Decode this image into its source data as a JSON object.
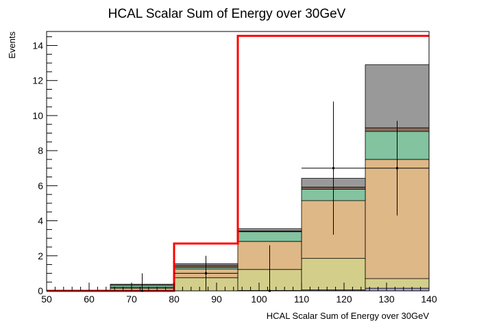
{
  "chart_data": {
    "type": "histogram",
    "title": "HCAL Scalar Sum of Energy over 30GeV",
    "xlabel": "HCAL Scalar Sum of Energy over 30GeV",
    "ylabel": "Events",
    "xlim": [
      50,
      140
    ],
    "ylim": [
      0,
      14.8
    ],
    "x_ticks": [
      50,
      60,
      70,
      80,
      90,
      100,
      110,
      120,
      130,
      140
    ],
    "y_ticks": [
      0,
      2,
      4,
      6,
      8,
      10,
      12,
      14
    ],
    "bin_edges": [
      50,
      65,
      80,
      95,
      110,
      125,
      140
    ],
    "stack": [
      {
        "id": "lavender",
        "color": "#a8a3cf",
        "values": [
          0,
          0,
          0,
          0.02,
          0.05,
          0.15
        ]
      },
      {
        "id": "olive",
        "color": "#d3cf8a",
        "values": [
          0,
          0.15,
          0.75,
          1.2,
          1.8,
          0.55
        ]
      },
      {
        "id": "tan",
        "color": "#deb887",
        "values": [
          0,
          0.05,
          0.5,
          1.6,
          3.3,
          6.8
        ]
      },
      {
        "id": "green",
        "color": "#83c3a0",
        "values": [
          0,
          0.12,
          0.1,
          0.55,
          0.65,
          1.6
        ]
      },
      {
        "id": "brown",
        "color": "#8b6e5c",
        "values": [
          0,
          0,
          0.1,
          0.05,
          0.12,
          0.2
        ]
      },
      {
        "id": "grey",
        "color": "#999999",
        "values": [
          0,
          0.06,
          0.1,
          0.13,
          0.5,
          3.6
        ]
      }
    ],
    "signal": {
      "color": "#ff0000",
      "values": [
        0,
        0,
        2.7,
        14.55,
        14.55,
        14.55
      ]
    },
    "data_points": [
      {
        "x": 72.5,
        "y": 0,
        "err": 1.0
      },
      {
        "x": 87.5,
        "y": 1,
        "err": 1.0
      },
      {
        "x": 102.5,
        "y": 0,
        "err": 2.6
      },
      {
        "x": 117.5,
        "y": 7,
        "err": 3.8
      },
      {
        "x": 132.5,
        "y": 7,
        "err": 2.7
      }
    ],
    "grid": false,
    "legend": "none"
  }
}
